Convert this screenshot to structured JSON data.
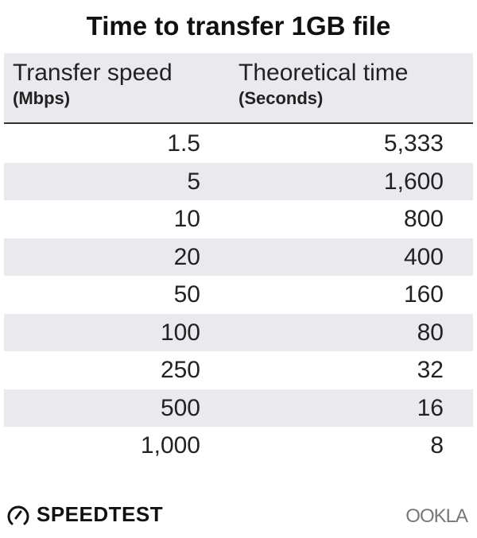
{
  "chart_data": {
    "type": "table",
    "title": "Time to transfer 1GB file",
    "columns": [
      {
        "label": "Transfer speed",
        "unit": "(Mbps)"
      },
      {
        "label": "Theoretical time",
        "unit": "(Seconds)"
      }
    ],
    "rows": [
      [
        "1.5",
        "5,333"
      ],
      [
        "5",
        "1,600"
      ],
      [
        "10",
        "800"
      ],
      [
        "20",
        "400"
      ],
      [
        "50",
        "160"
      ],
      [
        "100",
        "80"
      ],
      [
        "250",
        "32"
      ],
      [
        "500",
        "16"
      ],
      [
        "1,000",
        "8"
      ]
    ],
    "colors": {
      "header_bg": "#e9e9ee",
      "stripe": "#e9e9ee",
      "text": "#222222"
    }
  },
  "branding": {
    "speedtest": "SPEEDTEST",
    "ookla": "OOKLA"
  }
}
